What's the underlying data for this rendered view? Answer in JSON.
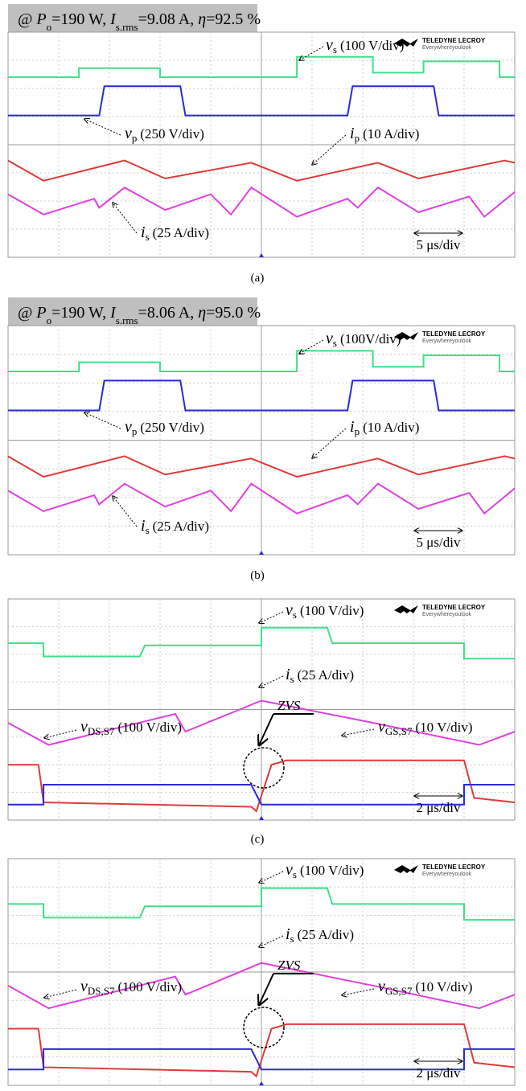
{
  "logo": {
    "brand": "TELEDYNE LECROY",
    "tagline": "Everywhereyoulook"
  },
  "panels": [
    {
      "header": {
        "prefix": "@ ",
        "p": "P",
        "p_sub": "o",
        "p_val": "=190 W, ",
        "i": "I",
        "i_sub": "s.rms",
        "i_val": "=9.08 A, ",
        "eta": "η",
        "eta_val": "=92.5 %"
      },
      "labels": [
        {
          "sym": "v",
          "sub": "s",
          "unit": "(100 V/div)"
        },
        {
          "sym": "v",
          "sub": "p",
          "unit": "(250 V/div)"
        },
        {
          "sym": "i",
          "sub": "p",
          "unit": "(10 A/div)"
        },
        {
          "sym": "i",
          "sub": "s",
          "unit": "(25 A/div)"
        }
      ],
      "timebase": "5 μs/div",
      "caption": "(a)"
    },
    {
      "header": {
        "prefix": "@ ",
        "p": "P",
        "p_sub": "o",
        "p_val": "=190 W, ",
        "i": "I",
        "i_sub": "s.rms",
        "i_val": "=8.06 A, ",
        "eta": "η",
        "eta_val": "=95.0 %"
      },
      "labels": [
        {
          "sym": "v",
          "sub": "s",
          "unit": "(100V/div)"
        },
        {
          "sym": "v",
          "sub": "p",
          "unit": "(250 V/div)"
        },
        {
          "sym": "i",
          "sub": "p",
          "unit": "(10 A/div)"
        },
        {
          "sym": "i",
          "sub": "s",
          "unit": "(25 A/div)"
        }
      ],
      "timebase": "5 μs/div",
      "caption": "(b)"
    },
    {
      "labels": [
        {
          "sym": "v",
          "sub": "s",
          "unit": "(100 V/div)"
        },
        {
          "sym": "i",
          "sub": "s",
          "unit": "(25 A/div)"
        },
        {
          "sym": "v",
          "sub": "DS,S7",
          "unit": "(100 V/div)"
        },
        {
          "sym": "v",
          "sub": "GS,S7",
          "unit": "(10 V/div)"
        }
      ],
      "zvs": "ZVS",
      "timebase": "2 μs/div",
      "caption": "(c)"
    },
    {
      "labels": [
        {
          "sym": "v",
          "sub": "s",
          "unit": "(100 V/div)"
        },
        {
          "sym": "i",
          "sub": "s",
          "unit": "(25 A/div)"
        },
        {
          "sym": "v",
          "sub": "DS,S7",
          "unit": "(100 V/div)"
        },
        {
          "sym": "v",
          "sub": "GS,S7",
          "unit": "(10 V/div)"
        }
      ],
      "zvs": "ZVS",
      "timebase": "2 μs/div"
    }
  ]
}
